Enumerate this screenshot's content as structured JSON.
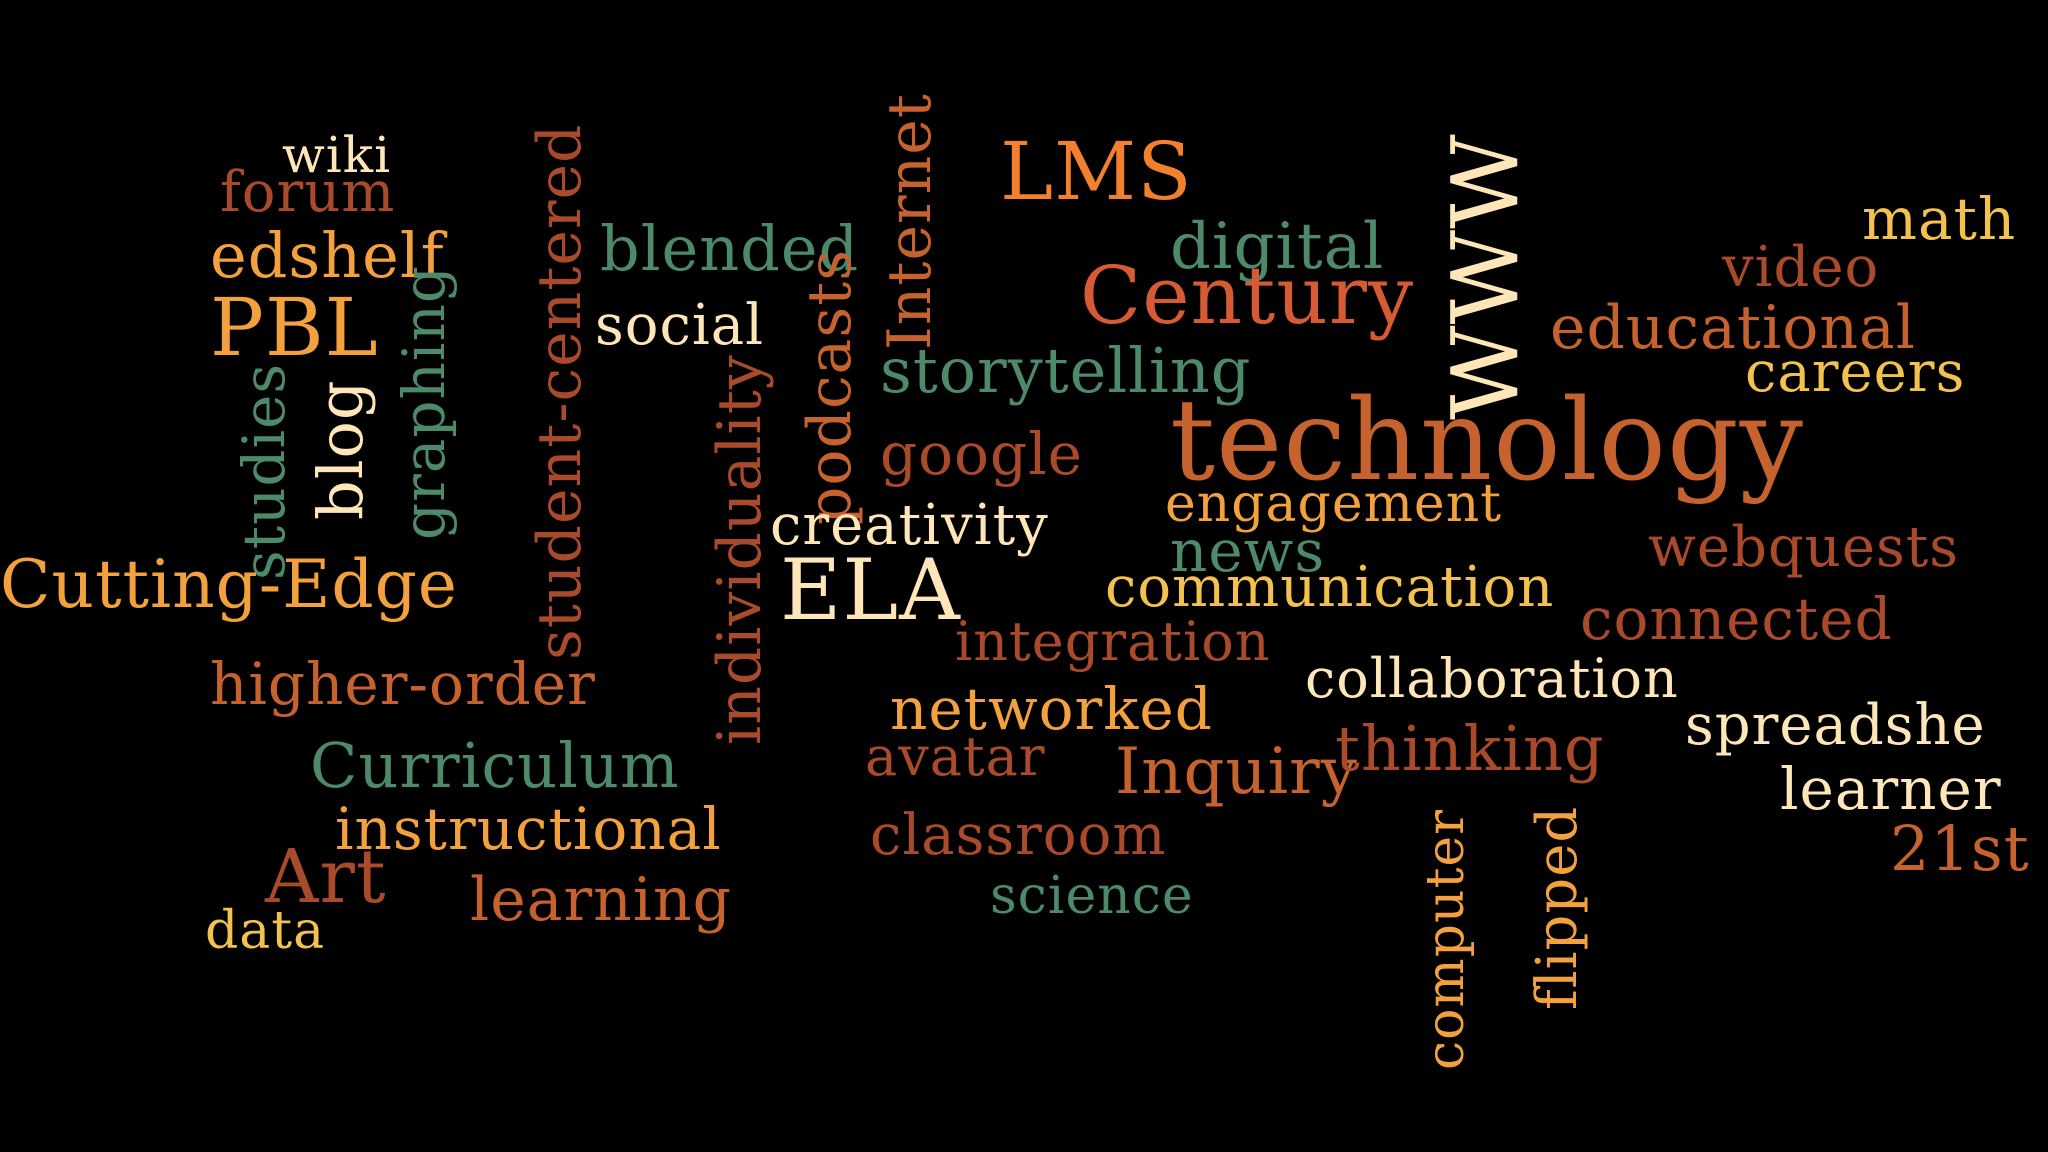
{
  "palette": {
    "background": "#000000",
    "colors": [
      "#f2e3b3",
      "#c6622e",
      "#f3a13f",
      "#4c8a6a",
      "#ffe6b8",
      "#a94a2b",
      "#f2c14e",
      "#d65a33"
    ]
  },
  "words": [
    {
      "text": "wiki",
      "color": "#ffe6b8"
    },
    {
      "text": "forum",
      "color": "#a94a2b"
    },
    {
      "text": "edshelf",
      "color": "#f3a13f"
    },
    {
      "text": "PBL",
      "color": "#f3a13f"
    },
    {
      "text": "studies",
      "color": "#4c8a6a"
    },
    {
      "text": "blog",
      "color": "#ffe6b8"
    },
    {
      "text": "graphing",
      "color": "#4c8a6a"
    },
    {
      "text": "student-centered",
      "color": "#a94a2b"
    },
    {
      "text": "Cutting-Edge",
      "color": "#f3a13f"
    },
    {
      "text": "higher-order",
      "color": "#c6622e"
    },
    {
      "text": "Curriculum",
      "color": "#4c8a6a"
    },
    {
      "text": "instructional",
      "color": "#f3a13f"
    },
    {
      "text": "Art",
      "color": "#a94a2b"
    },
    {
      "text": "learning",
      "color": "#c6622e"
    },
    {
      "text": "data",
      "color": "#f2c14e"
    },
    {
      "text": "blended",
      "color": "#4c8a6a"
    },
    {
      "text": "social",
      "color": "#ffe6b8"
    },
    {
      "text": "individuality",
      "color": "#a94a2b"
    },
    {
      "text": "podcasts",
      "color": "#c6622e"
    },
    {
      "text": "Internet",
      "color": "#c6622e"
    },
    {
      "text": "creativity",
      "color": "#ffe6b8"
    },
    {
      "text": "ELA",
      "color": "#ffe6b8"
    },
    {
      "text": "LMS",
      "color": "#f3802f"
    },
    {
      "text": "digital",
      "color": "#4c8a6a"
    },
    {
      "text": "Century",
      "color": "#d65a33"
    },
    {
      "text": "storytelling",
      "color": "#4c8a6a"
    },
    {
      "text": "google",
      "color": "#a94a2b"
    },
    {
      "text": "WWW",
      "color": "#ffe6b8"
    },
    {
      "text": "technology",
      "color": "#c6622e"
    },
    {
      "text": "engagement",
      "color": "#f3a13f"
    },
    {
      "text": "news",
      "color": "#4c8a6a"
    },
    {
      "text": "communication",
      "color": "#f2c14e"
    },
    {
      "text": "integration",
      "color": "#a94a2b"
    },
    {
      "text": "networked",
      "color": "#f3a13f"
    },
    {
      "text": "collaboration",
      "color": "#ffe6b8"
    },
    {
      "text": "avatar",
      "color": "#a94a2b"
    },
    {
      "text": "Inquiry",
      "color": "#c6622e"
    },
    {
      "text": "classroom",
      "color": "#a94a2b"
    },
    {
      "text": "science",
      "color": "#4c8a6a"
    },
    {
      "text": "thinking",
      "color": "#a94a2b"
    },
    {
      "text": "computer",
      "color": "#f3a13f"
    },
    {
      "text": "flipped",
      "color": "#f3a13f"
    },
    {
      "text": "math",
      "color": "#f2c14e"
    },
    {
      "text": "video",
      "color": "#a94a2b"
    },
    {
      "text": "educational",
      "color": "#c6622e"
    },
    {
      "text": "careers",
      "color": "#f2c14e"
    },
    {
      "text": "webquests",
      "color": "#a94a2b"
    },
    {
      "text": "connected",
      "color": "#a94a2b"
    },
    {
      "text": "spreadshe",
      "color": "#ffe6b8"
    },
    {
      "text": "learner",
      "color": "#ffe6b8"
    },
    {
      "text": "21st",
      "color": "#c6622e"
    }
  ]
}
